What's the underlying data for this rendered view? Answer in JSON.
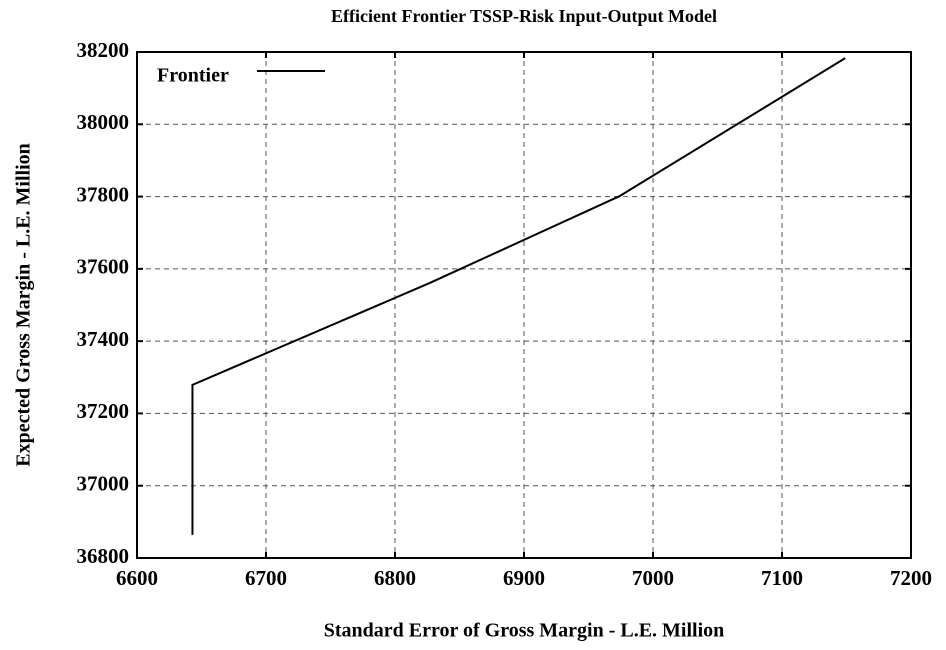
{
  "chart_data": {
    "type": "line",
    "title": "Efficient Frontier TSSP-Risk Input-Output Model",
    "x_label": "Standard Error of Gross Margin - L.E. Million",
    "y_label": "Expected Gross Margin - L.E. Million",
    "series": [
      {
        "name": "Frontier",
        "color": "#000000",
        "x": [
          6643,
          6643,
          6827,
          6974,
          7149
        ],
        "values": [
          36864,
          37279,
          37561,
          37801,
          38183
        ]
      }
    ],
    "xlim": [
      6600,
      7200
    ],
    "xticks": [
      6600,
      6700,
      6800,
      6900,
      7000,
      7100,
      7200
    ],
    "ylim": [
      36800,
      38200
    ],
    "yticks": [
      36800,
      37000,
      37200,
      37400,
      37600,
      37800,
      38000,
      38200
    ],
    "grid": true,
    "legend": "upper left"
  }
}
